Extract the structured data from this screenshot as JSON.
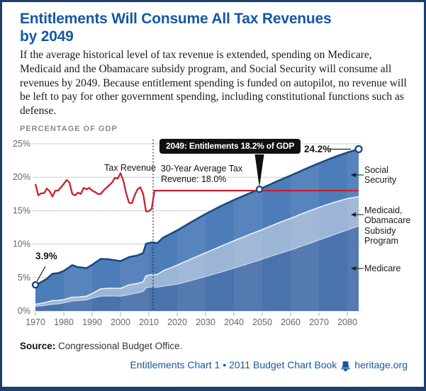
{
  "colors": {
    "accent_blue": "#1558a2",
    "border_navy": "#1c3f6e",
    "social_security_fill": "#4d7db9",
    "medicaid_fill": "#9cb4d6",
    "medicare_fill": "#4a72ad",
    "top_edge": "#1c4a80",
    "tax_line_red": "#c8222a",
    "gridline": "#cccccc",
    "tooltip_bg": "#111111"
  },
  "header": {
    "title_line1": "Entitlements Will Consume All Tax Revenues",
    "title_line2": "by 2049",
    "intro": "If the average historical level of tax revenue is extended, spending on Medicare, Medicaid and the Obamacare subsidy program, and Social Security will consume all revenues by 2049. Because entitlement spending is funded on autopilot, no revenue will be left to pay for other government spending, including constitutional functions such as defense."
  },
  "chart_data": {
    "type": "area",
    "title": "PERCENTAGE OF GDP",
    "xlim": [
      1970,
      2084
    ],
    "ylim": [
      0,
      25
    ],
    "grid": "horizontal",
    "x_ticks": [
      1970,
      1980,
      1990,
      2000,
      2010,
      2020,
      2030,
      2040,
      2050,
      2060,
      2070,
      2080
    ],
    "y_tick_values": [
      0,
      5,
      10,
      15,
      20,
      25
    ],
    "y_tick_labels": [
      "0%",
      "5%",
      "10%",
      "15%",
      "20%",
      "25%"
    ],
    "stacked_series": {
      "note": "stacked bottom-to-top: Medicare, Medicaid/Obamacare, Social Security; % of GDP at knot years, linear between",
      "knot_years": [
        1970,
        1972,
        1974,
        1976,
        1978,
        1980,
        1983,
        1985,
        1988,
        1990,
        1993,
        1996,
        2000,
        2003,
        2006,
        2008,
        2009,
        2011,
        2013,
        2015,
        2020,
        2025,
        2030,
        2035,
        2040,
        2045,
        2049,
        2055,
        2060,
        2065,
        2070,
        2075,
        2080,
        2084
      ],
      "medicare": [
        0.7,
        0.75,
        0.87,
        1.0,
        1.05,
        1.2,
        1.5,
        1.55,
        1.65,
        1.9,
        2.2,
        2.25,
        2.2,
        2.45,
        2.7,
        2.9,
        3.45,
        3.6,
        3.55,
        3.7,
        4.0,
        4.55,
        5.15,
        5.75,
        6.4,
        7.05,
        7.6,
        8.45,
        9.1,
        9.85,
        10.6,
        11.35,
        12.1,
        12.7
      ],
      "medicaid": [
        0.3,
        0.38,
        0.45,
        0.55,
        0.52,
        0.5,
        0.55,
        0.52,
        0.55,
        0.72,
        1.1,
        1.15,
        1.18,
        1.45,
        1.42,
        1.45,
        1.8,
        1.85,
        1.9,
        2.3,
        2.85,
        3.25,
        3.55,
        3.85,
        4.1,
        4.3,
        4.4,
        4.6,
        4.75,
        4.85,
        4.9,
        4.85,
        4.7,
        4.4
      ],
      "social_security": [
        2.9,
        3.17,
        3.48,
        4.0,
        4.08,
        4.3,
        4.8,
        4.48,
        4.2,
        4.28,
        4.48,
        4.32,
        4.07,
        4.15,
        4.18,
        4.3,
        4.8,
        4.8,
        4.7,
        4.95,
        5.2,
        5.5,
        5.8,
        6.0,
        6.1,
        6.15,
        6.2,
        6.3,
        6.4,
        6.5,
        6.6,
        6.75,
        6.9,
        7.1
      ]
    },
    "tax_revenue": {
      "name": "Tax Revenue",
      "years_start": 1970,
      "historical": [
        19.0,
        17.3,
        17.6,
        17.6,
        18.3,
        17.9,
        17.1,
        18.0,
        18.0,
        18.5,
        19.0,
        19.6,
        19.2,
        17.5,
        17.3,
        17.7,
        17.5,
        18.4,
        18.2,
        18.4,
        18.0,
        17.8,
        17.5,
        17.5,
        18.0,
        18.4,
        18.8,
        19.2,
        19.9,
        19.8,
        20.6,
        19.5,
        17.6,
        16.2,
        16.1,
        17.3,
        18.2,
        18.5,
        17.5,
        14.9,
        14.9,
        15.3
      ],
      "projected_value": 18.0,
      "projected_through": 2084
    },
    "annotations": {
      "divider_year": 2011.5,
      "tooltip": {
        "year": 2049,
        "value": 18.2,
        "label": "2049: Entitlements 18.2% of GDP"
      },
      "callout_1970": {
        "year": 1970,
        "value": 3.9,
        "label": "3.9%"
      },
      "callout_end": {
        "year": 2084,
        "value": 24.2,
        "label": "24.2%"
      },
      "tax_revenue_label": "Tax Revenue",
      "avg_line1": "30-Year Average Tax",
      "avg_line2": "Revenue: 18.0%"
    },
    "legend": {
      "position": "right",
      "items": [
        {
          "series": "Social Security",
          "lines": [
            "Social",
            "Security"
          ]
        },
        {
          "series": "Medicaid, Obamacare Subsidy Program",
          "lines": [
            "Medicaid,",
            "Obamacare",
            "Subsidy",
            "Program"
          ]
        },
        {
          "series": "Medicare",
          "lines": [
            "Medicare"
          ]
        }
      ]
    }
  },
  "footer": {
    "source_label": "Source:",
    "source_text": "Congressional Budget Office.",
    "credit_left": "Entitlements Chart 1 • 2011 Budget Chart Book",
    "site": "heritage.org"
  }
}
